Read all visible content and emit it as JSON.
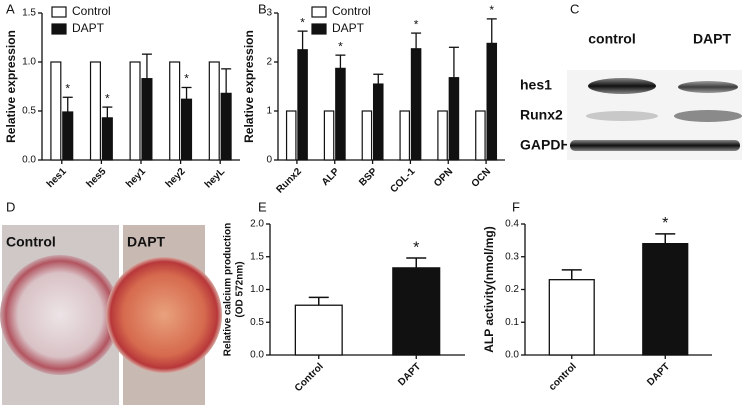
{
  "chart_data": [
    {
      "type": "bar",
      "panel": "A",
      "ylabel": [
        "Relative expression"
      ],
      "categories": [
        "hes1",
        "hes5",
        "hey1",
        "hey2",
        "heyL"
      ],
      "series": [
        {
          "name": "Control",
          "color": "#ffffff",
          "values": [
            1,
            1,
            1,
            1,
            1
          ]
        },
        {
          "name": "DAPT",
          "color": "#111111",
          "values": [
            0.49,
            0.43,
            0.83,
            0.62,
            0.68
          ],
          "errors": [
            0.15,
            0.11,
            0.25,
            0.12,
            0.25
          ]
        }
      ],
      "significance": [
        "*",
        "*",
        null,
        "*",
        null
      ],
      "ylim": [
        0,
        1.5
      ],
      "yticks": [
        {
          "value": 0,
          "label": "0.0"
        },
        0.5,
        {
          "value": 1,
          "label": "1.0"
        },
        1.5
      ]
    },
    {
      "type": "bar",
      "panel": "B",
      "ylabel": [
        "Relative expression"
      ],
      "categories": [
        "Runx2",
        "ALP",
        "BSP",
        "COL-1",
        "OPN",
        "OCN"
      ],
      "series": [
        {
          "name": "Control",
          "color": "#ffffff",
          "values": [
            1,
            1,
            1,
            1,
            1,
            1
          ]
        },
        {
          "name": "DAPT",
          "color": "#111111",
          "values": [
            2.25,
            1.87,
            1.55,
            2.27,
            1.68,
            2.38
          ],
          "errors": [
            0.38,
            0.27,
            0.2,
            0.32,
            0.62,
            0.5
          ]
        }
      ],
      "significance": [
        "*",
        "*",
        null,
        "*",
        null,
        "*"
      ],
      "ylim": [
        0,
        3
      ],
      "yticks": [
        0,
        1,
        2,
        3
      ]
    },
    {
      "type": "bar",
      "panel": "E",
      "ylabel": [
        "Relative calcium production",
        "(OD 572nm)"
      ],
      "categories": [
        "Control",
        "DAPT"
      ],
      "values": [
        0.76,
        1.33
      ],
      "errors": [
        0.12,
        0.15
      ],
      "colors": [
        "#ffffff",
        "#111111"
      ],
      "significance": [
        null,
        "*"
      ],
      "ylim": [
        0,
        2
      ],
      "yticks": [
        {
          "value": 0,
          "label": "0.0"
        },
        0.5,
        {
          "value": 1,
          "label": "1.0"
        },
        1.5,
        {
          "value": 2,
          "label": "2.0"
        }
      ]
    },
    {
      "type": "bar",
      "panel": "F",
      "ylabel": [
        "ALP activity(nmol/mg)"
      ],
      "categories": [
        "control",
        "DAPT"
      ],
      "values": [
        0.23,
        0.34
      ],
      "errors": [
        0.03,
        0.03
      ],
      "colors": [
        "#ffffff",
        "#111111"
      ],
      "significance": [
        null,
        "*"
      ],
      "ylim": [
        0,
        0.4
      ],
      "yticks": [
        {
          "value": 0,
          "label": "0.0"
        },
        0.1,
        0.2,
        0.3,
        0.4
      ]
    }
  ],
  "blot": {
    "panel": "C",
    "columns": [
      "control",
      "DAPT"
    ],
    "rows": [
      "hes1",
      "Runx2",
      "GAPDH"
    ]
  },
  "photos": {
    "panel": "D",
    "labels": [
      "Control",
      "DAPT"
    ]
  }
}
